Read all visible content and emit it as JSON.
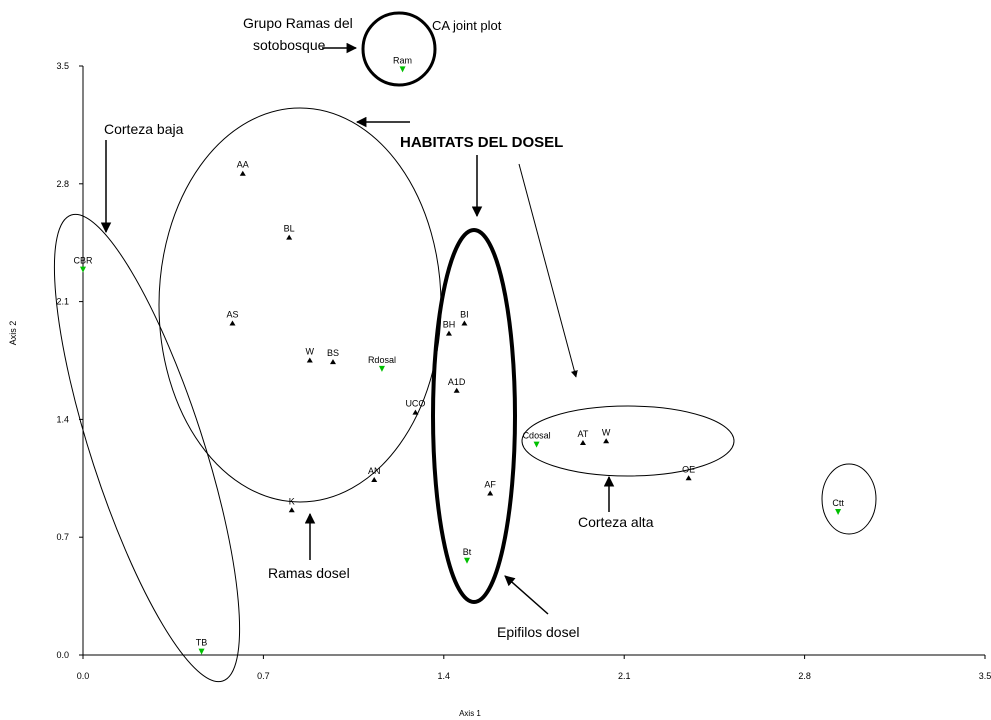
{
  "chart_data": {
    "type": "scatter",
    "title": "CA joint plot",
    "xlabel": "Axis 1",
    "ylabel": "Axis 2",
    "xlim": [
      0,
      3.5
    ],
    "ylim": [
      0,
      3.5
    ],
    "xticks": [
      "0.0",
      "0.7",
      "1.4",
      "2.1",
      "2.8",
      "3.5"
    ],
    "yticks": [
      "0.0",
      "0.7",
      "1.4",
      "2.1",
      "2.8",
      "3.5"
    ],
    "grid": false,
    "species_points": [
      {
        "label": "AA",
        "x": 0.62,
        "y": 2.86
      },
      {
        "label": "BL",
        "x": 0.8,
        "y": 2.48
      },
      {
        "label": "AS",
        "x": 0.58,
        "y": 1.97
      },
      {
        "label": "W",
        "x": 0.88,
        "y": 1.75
      },
      {
        "label": "BS",
        "x": 0.97,
        "y": 1.74
      },
      {
        "label": "UCO",
        "x": 1.29,
        "y": 1.44
      },
      {
        "label": "AN",
        "x": 1.13,
        "y": 1.04
      },
      {
        "label": "K",
        "x": 0.81,
        "y": 0.86
      },
      {
        "label": "BH",
        "x": 1.42,
        "y": 1.91
      },
      {
        "label": "BI",
        "x": 1.48,
        "y": 1.97
      },
      {
        "label": "A1D",
        "x": 1.45,
        "y": 1.57
      },
      {
        "label": "AF",
        "x": 1.58,
        "y": 0.96
      },
      {
        "label": "AT",
        "x": 1.94,
        "y": 1.26
      },
      {
        "label": "W",
        "x": 2.03,
        "y": 1.27
      },
      {
        "label": "OE",
        "x": 2.35,
        "y": 1.05
      }
    ],
    "group_points": [
      {
        "label": "Ram",
        "x": 1.24,
        "y": 3.48
      },
      {
        "label": "CBR",
        "x": 0.0,
        "y": 2.29
      },
      {
        "label": "Rdosal",
        "x": 1.16,
        "y": 1.7
      },
      {
        "label": "Cdosal",
        "x": 1.76,
        "y": 1.25
      },
      {
        "label": "Bt",
        "x": 1.49,
        "y": 0.56
      },
      {
        "label": "TB",
        "x": 0.46,
        "y": 0.02
      },
      {
        "label": "Ctt",
        "x": 2.93,
        "y": 0.85
      }
    ],
    "annotations": {
      "grupo_ramas_line1": "Grupo Ramas del",
      "grupo_ramas_line2": "sotobosque",
      "corteza_baja": "Corteza baja",
      "habitats_del_dosel": "HABITATS DEL DOSEL",
      "ramas_dosel": "Ramas dosel",
      "corteza_alta": "Corteza alta",
      "epifilos_dosel": "Epifilos dosel"
    },
    "colors": {
      "species": "#000000",
      "groups": "#00c000",
      "axes": "#000000"
    }
  }
}
